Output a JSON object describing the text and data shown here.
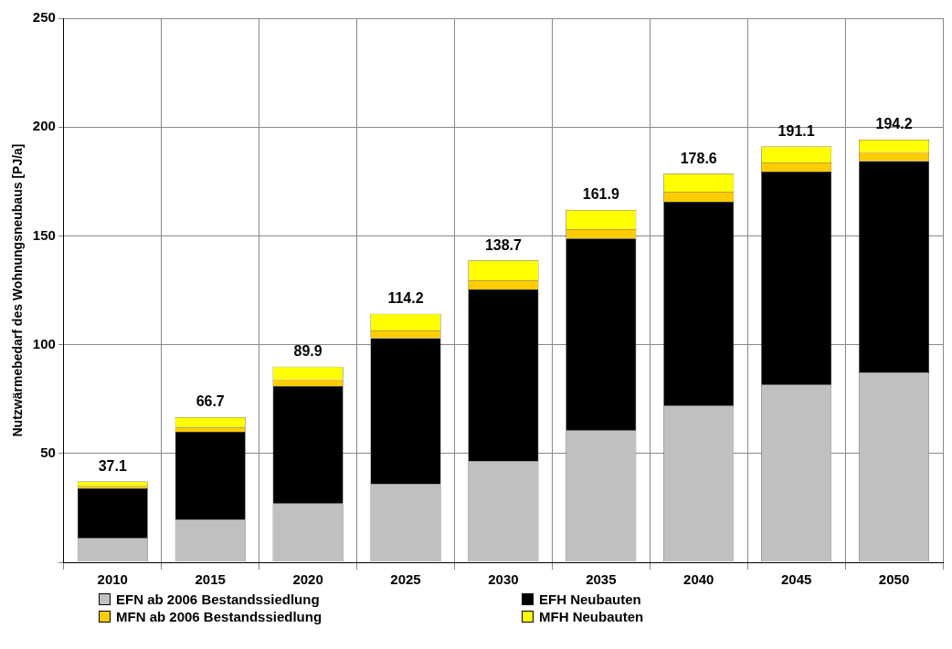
{
  "chart_data": {
    "type": "bar",
    "stacked": true,
    "ylabel": "Nutzwärmebedarf des Wohnungsneubaus [PJ/a]",
    "categories": [
      "2010",
      "2015",
      "2020",
      "2025",
      "2030",
      "2035",
      "2040",
      "2045",
      "2050"
    ],
    "series": [
      {
        "name": "EFN ab 2006 Bestandssiedlung",
        "color": "#c0c0c0",
        "values": [
          11,
          19.5,
          27,
          36,
          46.6,
          60.5,
          71.8,
          81.5,
          87.3
        ]
      },
      {
        "name": "EFH Neubauten",
        "color": "#000000",
        "values": [
          23,
          40.5,
          54,
          67,
          78.8,
          88.3,
          93.9,
          98,
          97.1
        ]
      },
      {
        "name": "MFN ab 2006 Bestandssiedlung",
        "color": "#ffcc00",
        "values": [
          1,
          2,
          3,
          3.5,
          4.2,
          4.3,
          4.6,
          4.2,
          4
        ]
      },
      {
        "name": "MFH Neubauten",
        "color": "#ffff00",
        "values": [
          2.1,
          4.7,
          5.9,
          7.7,
          9.1,
          8.8,
          8.3,
          7.4,
          5.8
        ]
      }
    ],
    "totals": [
      "37.1",
      "66.7",
      "89.9",
      "114.2",
      "138.7",
      "161.9",
      "178.6",
      "191.1",
      "194.2"
    ],
    "ylim": [
      0,
      250
    ],
    "yticks": [
      {
        "value": 0,
        "label": null
      },
      50,
      100,
      150,
      200,
      250
    ],
    "grid": true,
    "legend": "bottom"
  }
}
